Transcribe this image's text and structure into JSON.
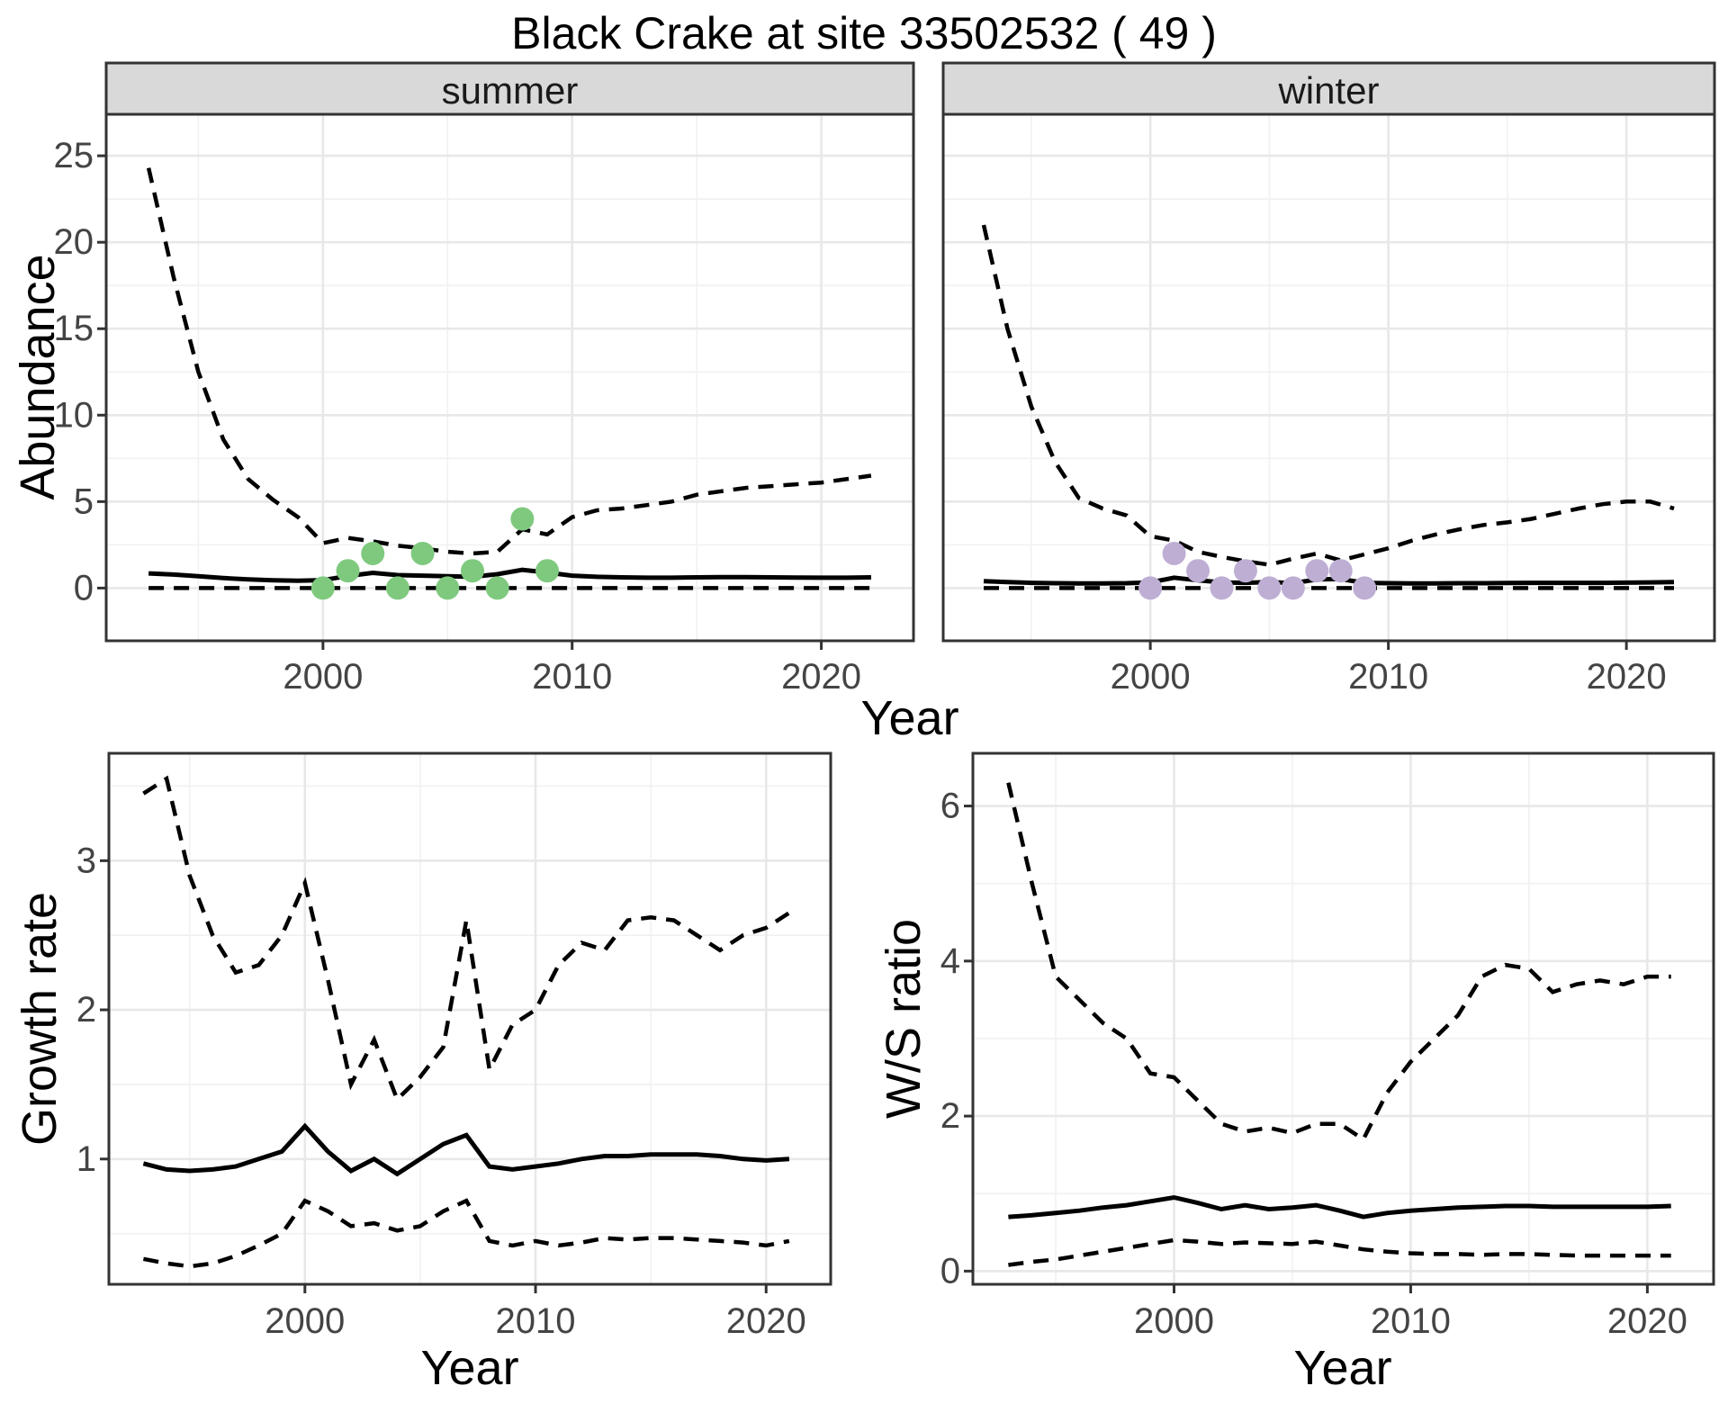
{
  "title": "Black Crake at site 33502532 ( 49 )",
  "colors": {
    "background": "#ffffff",
    "panel_bg": "#ffffff",
    "panel_border": "#333333",
    "strip_bg": "#d9d9d9",
    "grid_major": "#e8e8e8",
    "grid_minor": "#f1f1f1",
    "line": "#000000",
    "tick": "#333333",
    "tick_label": "#444444",
    "summer_points": "#7fc97f",
    "winter_points": "#beaed4"
  },
  "chart_data": [
    {
      "id": "abundance-summer",
      "type": "line",
      "facet_label": "summer",
      "xlabel": "Year",
      "ylabel": "Abundance",
      "xlim": [
        1991.3,
        2023.7
      ],
      "ylim": [
        -3.05,
        27.4
      ],
      "xticks": {
        "major": [
          2000,
          2010,
          2020
        ],
        "labels": [
          "2000",
          "2010",
          "2020"
        ],
        "minor": [
          1995,
          2005,
          2015
        ]
      },
      "yticks": {
        "major": [
          0,
          5,
          10,
          15,
          20,
          25
        ],
        "labels": [
          "0",
          "5",
          "10",
          "15",
          "20",
          "25"
        ],
        "minor": [
          2.5,
          7.5,
          12.5,
          17.5,
          22.5
        ]
      },
      "x": [
        1993,
        1994,
        1995,
        1996,
        1997,
        1998,
        1999,
        2000,
        2001,
        2002,
        2003,
        2004,
        2005,
        2006,
        2007,
        2008,
        2009,
        2010,
        2011,
        2012,
        2013,
        2014,
        2015,
        2016,
        2017,
        2018,
        2019,
        2020,
        2021,
        2022
      ],
      "series": [
        {
          "name": "upper_95ci",
          "style": "dashed",
          "values": [
            24.3,
            18.0,
            12.5,
            8.6,
            6.3,
            5.1,
            4.1,
            2.6,
            2.9,
            2.7,
            2.45,
            2.3,
            2.1,
            2.0,
            2.1,
            3.4,
            3.1,
            4.1,
            4.5,
            4.6,
            4.8,
            5.0,
            5.4,
            5.6,
            5.8,
            5.9,
            6.0,
            6.1,
            6.3,
            6.5
          ]
        },
        {
          "name": "median",
          "style": "solid",
          "values": [
            0.85,
            0.78,
            0.68,
            0.58,
            0.5,
            0.45,
            0.42,
            0.46,
            0.7,
            0.88,
            0.75,
            0.72,
            0.68,
            0.65,
            0.8,
            1.05,
            0.9,
            0.72,
            0.65,
            0.62,
            0.6,
            0.6,
            0.62,
            0.63,
            0.63,
            0.62,
            0.61,
            0.6,
            0.6,
            0.62
          ]
        },
        {
          "name": "lower_95ci",
          "style": "dashed",
          "values": [
            0,
            0,
            0,
            0,
            0,
            0,
            0,
            0,
            0,
            0,
            0,
            0,
            0,
            0,
            0,
            0,
            0,
            0,
            0,
            0,
            0,
            0,
            0,
            0,
            0,
            0,
            0,
            0,
            0,
            0
          ]
        }
      ],
      "points": {
        "name": "observed_counts",
        "color": "#7fc97f",
        "x": [
          2000,
          2001,
          2002,
          2003,
          2004,
          2005,
          2006,
          2007,
          2008,
          2009
        ],
        "y": [
          0,
          1,
          2,
          0,
          2,
          0,
          1,
          0,
          4,
          1
        ]
      }
    },
    {
      "id": "abundance-winter",
      "type": "line",
      "facet_label": "winter",
      "xlabel": "Year",
      "ylabel": "Abundance",
      "xlim": [
        1991.3,
        2023.7
      ],
      "ylim": [
        -3.05,
        27.4
      ],
      "xticks": {
        "major": [
          2000,
          2010,
          2020
        ],
        "labels": [
          "2000",
          "2010",
          "2020"
        ],
        "minor": [
          1995,
          2005,
          2015
        ]
      },
      "yticks": {
        "major": [
          0,
          5,
          10,
          15,
          20,
          25
        ],
        "labels": [
          "0",
          "5",
          "10",
          "15",
          "20",
          "25"
        ],
        "minor": [
          2.5,
          7.5,
          12.5,
          17.5,
          22.5
        ]
      },
      "x": [
        1993,
        1994,
        1995,
        1996,
        1997,
        1998,
        1999,
        2000,
        2001,
        2002,
        2003,
        2004,
        2005,
        2006,
        2007,
        2008,
        2009,
        2010,
        2011,
        2012,
        2013,
        2014,
        2015,
        2016,
        2017,
        2018,
        2019,
        2020,
        2021,
        2022
      ],
      "series": [
        {
          "name": "upper_95ci",
          "style": "dashed",
          "values": [
            21.0,
            15.0,
            10.5,
            7.3,
            5.2,
            4.6,
            4.2,
            3.0,
            2.75,
            2.1,
            1.8,
            1.55,
            1.35,
            1.7,
            2.0,
            1.6,
            1.95,
            2.3,
            2.75,
            3.1,
            3.4,
            3.65,
            3.8,
            4.0,
            4.3,
            4.6,
            4.85,
            5.0,
            5.0,
            4.6
          ]
        },
        {
          "name": "median",
          "style": "solid",
          "values": [
            0.4,
            0.35,
            0.3,
            0.28,
            0.27,
            0.27,
            0.28,
            0.33,
            0.6,
            0.45,
            0.33,
            0.3,
            0.35,
            0.28,
            0.5,
            0.52,
            0.3,
            0.28,
            0.27,
            0.27,
            0.28,
            0.28,
            0.29,
            0.3,
            0.3,
            0.3,
            0.3,
            0.31,
            0.33,
            0.35
          ]
        },
        {
          "name": "lower_95ci",
          "style": "dashed",
          "values": [
            0,
            0,
            0,
            0,
            0,
            0,
            0,
            0,
            0,
            0,
            0,
            0,
            0,
            0,
            0,
            0,
            0,
            0,
            0,
            0,
            0,
            0,
            0,
            0,
            0,
            0,
            0,
            0,
            0,
            0
          ]
        }
      ],
      "points": {
        "name": "observed_counts",
        "color": "#beaed4",
        "x": [
          2000,
          2001,
          2002,
          2003,
          2004,
          2005,
          2006,
          2007,
          2008,
          2009
        ],
        "y": [
          0,
          2,
          1,
          0,
          1,
          0,
          0,
          1,
          1,
          0
        ]
      }
    },
    {
      "id": "growth-rate",
      "type": "line",
      "xlabel": "Year",
      "ylabel": "Growth rate",
      "xlim": [
        1991.5,
        2022.8
      ],
      "ylim": [
        0.16,
        3.72
      ],
      "xticks": {
        "major": [
          2000,
          2010,
          2020
        ],
        "labels": [
          "2000",
          "2010",
          "2020"
        ],
        "minor": [
          1995,
          2005,
          2015
        ]
      },
      "yticks": {
        "major": [
          1,
          2,
          3
        ],
        "labels": [
          "1",
          "2",
          "3"
        ],
        "minor": [
          0.5,
          1.5,
          2.5,
          3.5
        ]
      },
      "x": [
        1993,
        1994,
        1995,
        1996,
        1997,
        1998,
        1999,
        2000,
        2001,
        2002,
        2003,
        2004,
        2005,
        2006,
        2007,
        2008,
        2009,
        2010,
        2011,
        2012,
        2013,
        2014,
        2015,
        2016,
        2017,
        2018,
        2019,
        2020,
        2021
      ],
      "series": [
        {
          "name": "upper_95ci",
          "style": "dashed",
          "values": [
            3.45,
            3.55,
            2.9,
            2.5,
            2.25,
            2.3,
            2.5,
            2.85,
            2.2,
            1.5,
            1.8,
            1.4,
            1.55,
            1.75,
            2.6,
            1.6,
            1.9,
            2.0,
            2.3,
            2.45,
            2.4,
            2.6,
            2.62,
            2.6,
            2.5,
            2.4,
            2.5,
            2.55,
            2.65
          ]
        },
        {
          "name": "median",
          "style": "solid",
          "values": [
            0.97,
            0.93,
            0.92,
            0.93,
            0.95,
            1.0,
            1.05,
            1.22,
            1.05,
            0.92,
            1.0,
            0.9,
            1.0,
            1.1,
            1.16,
            0.95,
            0.93,
            0.95,
            0.97,
            1.0,
            1.02,
            1.02,
            1.03,
            1.03,
            1.03,
            1.02,
            1.0,
            0.99,
            1.0
          ]
        },
        {
          "name": "lower_95ci",
          "style": "dashed",
          "values": [
            0.33,
            0.3,
            0.28,
            0.3,
            0.35,
            0.42,
            0.5,
            0.72,
            0.65,
            0.55,
            0.57,
            0.52,
            0.55,
            0.65,
            0.72,
            0.45,
            0.42,
            0.45,
            0.42,
            0.44,
            0.47,
            0.46,
            0.47,
            0.47,
            0.46,
            0.45,
            0.44,
            0.42,
            0.45
          ]
        }
      ]
    },
    {
      "id": "ws-ratio",
      "type": "line",
      "xlabel": "Year",
      "ylabel": "W/S ratio",
      "xlim": [
        1991.5,
        2022.8
      ],
      "ylim": [
        -0.17,
        6.68
      ],
      "xticks": {
        "major": [
          2000,
          2010,
          2020
        ],
        "labels": [
          "2000",
          "2010",
          "2020"
        ],
        "minor": [
          1995,
          2005,
          2015
        ]
      },
      "yticks": {
        "major": [
          0,
          2,
          4,
          6
        ],
        "labels": [
          "0",
          "2",
          "4",
          "6"
        ],
        "minor": [
          1,
          3,
          5
        ]
      },
      "x": [
        1993,
        1994,
        1995,
        1996,
        1997,
        1998,
        1999,
        2000,
        2001,
        2002,
        2003,
        2004,
        2005,
        2006,
        2007,
        2008,
        2009,
        2010,
        2011,
        2012,
        2013,
        2014,
        2015,
        2016,
        2017,
        2018,
        2019,
        2020,
        2021
      ],
      "series": [
        {
          "name": "upper_95ci",
          "style": "dashed",
          "values": [
            6.3,
            5.0,
            3.8,
            3.5,
            3.2,
            3.0,
            2.55,
            2.5,
            2.2,
            1.9,
            1.8,
            1.85,
            1.78,
            1.9,
            1.9,
            1.7,
            2.3,
            2.7,
            3.0,
            3.3,
            3.8,
            3.95,
            3.9,
            3.6,
            3.7,
            3.75,
            3.7,
            3.8,
            3.8
          ]
        },
        {
          "name": "median",
          "style": "solid",
          "values": [
            0.7,
            0.72,
            0.75,
            0.78,
            0.82,
            0.85,
            0.9,
            0.95,
            0.88,
            0.8,
            0.85,
            0.8,
            0.82,
            0.85,
            0.78,
            0.7,
            0.75,
            0.78,
            0.8,
            0.82,
            0.83,
            0.84,
            0.84,
            0.83,
            0.83,
            0.83,
            0.83,
            0.83,
            0.84
          ]
        },
        {
          "name": "lower_95ci",
          "style": "dashed",
          "values": [
            0.08,
            0.12,
            0.15,
            0.2,
            0.25,
            0.3,
            0.35,
            0.4,
            0.38,
            0.35,
            0.37,
            0.36,
            0.35,
            0.38,
            0.33,
            0.28,
            0.25,
            0.23,
            0.22,
            0.22,
            0.21,
            0.22,
            0.22,
            0.21,
            0.2,
            0.2,
            0.2,
            0.2,
            0.2
          ]
        }
      ]
    }
  ]
}
